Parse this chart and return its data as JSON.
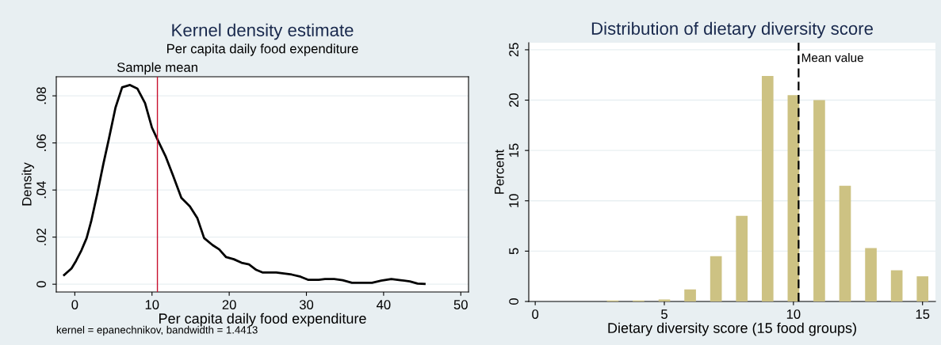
{
  "chart_data": [
    {
      "type": "line",
      "title": "Kernel density estimate",
      "subtitle": "Per capita daily food expenditure",
      "xlabel": "Per capita daily food expenditure",
      "ylabel": "Density",
      "annotations": [
        "kernel = epanechnikov, bandwidth = 1.4413"
      ],
      "x": [
        -1.38,
        -0.43,
        0.16,
        0.86,
        1.53,
        2.12,
        2.9,
        3.7,
        4.4,
        5.27,
        6.13,
        7.15,
        8.1,
        9.1,
        9.98,
        10.7,
        11.75,
        12.74,
        13.8,
        14.9,
        15.88,
        16.75,
        17.85,
        18.7,
        19.6,
        20.6,
        21.6,
        22.56,
        23.5,
        24.3,
        26.1,
        28.1,
        29.25,
        30.2,
        31.6,
        32.4,
        33.6,
        34.7,
        35.9,
        38.5,
        39.7,
        41,
        42.2,
        43.4,
        44.4,
        45.3
      ],
      "series": [
        {
          "color": "#000000",
          "values": [
            0.0039,
            0.0067,
            0.0099,
            0.0144,
            0.0196,
            0.0267,
            0.0383,
            0.0511,
            0.0615,
            0.075,
            0.0836,
            0.0846,
            0.0831,
            0.0769,
            0.0666,
            0.0615,
            0.0544,
            0.046,
            0.0367,
            0.0331,
            0.028,
            0.0196,
            0.0166,
            0.0148,
            0.0115,
            0.0106,
            0.0091,
            0.0084,
            0.0061,
            0.005,
            0.005,
            0.0041,
            0.0032,
            0.0019,
            0.0019,
            0.0022,
            0.0022,
            0.0017,
            0.0006,
            0.0006,
            0.0015,
            0.0022,
            0.0017,
            0.0012,
            0.0003,
            0.0001
          ]
        }
      ],
      "xlim": [
        -2.4,
        51
      ],
      "xticks": [
        0,
        10,
        20,
        30,
        40,
        50
      ],
      "ylim": [
        -0.0033,
        0.0881
      ],
      "yticks": [
        {
          "value": 0,
          "label": "0"
        },
        {
          "value": 0.02,
          "label": ".02"
        },
        {
          "value": 0.04,
          "label": ".04"
        },
        {
          "value": 0.06,
          "label": ".06"
        },
        {
          "value": 0.08,
          "label": ".08"
        }
      ],
      "ref_lines": [
        {
          "axis": "x",
          "value": 10.7,
          "label": "Sample mean",
          "color": "#c8102e",
          "line_style": "solid"
        }
      ],
      "grid": "y",
      "marker": "none",
      "line_style": "solid"
    },
    {
      "type": "bar",
      "title": "Distribution of dietary diversity score",
      "xlabel": "Dietary diversity score (15 food groups)",
      "ylabel": "Percent",
      "x": [
        3,
        4,
        5,
        6,
        7,
        8,
        9,
        10,
        11,
        12,
        13,
        14,
        15
      ],
      "series": [
        {
          "color": "#cdc283",
          "values": [
            0.1,
            0.1,
            0.2,
            1.2,
            4.5,
            8.5,
            22.4,
            20.5,
            20,
            11.5,
            5.3,
            3.1,
            2.5
          ]
        }
      ],
      "xlim": [
        -0.25,
        15.5
      ],
      "xticks": [
        0,
        5,
        10,
        15
      ],
      "ylim": [
        0,
        25.7
      ],
      "yticks": [
        0,
        5,
        10,
        15,
        20,
        25
      ],
      "ref_lines": [
        {
          "axis": "x",
          "value": 10.2,
          "label": "Mean value",
          "color": "#000000",
          "line_style": "dashed"
        }
      ],
      "grid": "y"
    }
  ]
}
